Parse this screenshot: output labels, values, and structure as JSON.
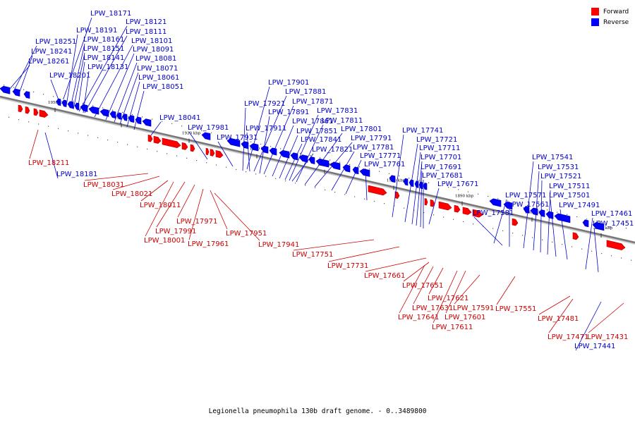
{
  "caption": "Legionella pneumophila 130b draft genome. - 0..3489800",
  "legend": {
    "forward": {
      "label": "Forward",
      "color": "#ff0000"
    },
    "reverse": {
      "label": "Reverse",
      "color": "#0000ff"
    }
  },
  "colors": {
    "forward_label": "#cc0000",
    "reverse_label": "#0000cc",
    "axis": "#777777"
  },
  "ticks": [
    "1950 kbp",
    "1940 kbp",
    "1930 kbp",
    "1920 kbp",
    "1910 kbp",
    "1900 kbp",
    "1890 kbp",
    "1880 kbp",
    "1870 kbp"
  ],
  "reverse_genes": [
    "LPW_18171",
    "LPW_18191",
    "LPW_18121",
    "LPW_18161",
    "LPW_18111",
    "LPW_18251",
    "LPW_18151",
    "LPW_18101",
    "LPW_18241",
    "LPW_18141",
    "LPW_18091",
    "LPW_18261",
    "LPW_18131",
    "LPW_18081",
    "LPW_18071",
    "LPW_18201",
    "LPW_18061",
    "LPW_18051",
    "LPW_18041",
    "LPW_17981",
    "LPW_17931",
    "LPW_17901",
    "LPW_17881",
    "LPW_17921",
    "LPW_17871",
    "LPW_17891",
    "LPW_17831",
    "LPW_17861",
    "LPW_17911",
    "LPW_17811",
    "LPW_17851",
    "LPW_17801",
    "LPW_17841",
    "LPW_17791",
    "LPW_17821",
    "LPW_17781",
    "LPW_17771",
    "LPW_17761",
    "LPW_17741",
    "LPW_17721",
    "LPW_17711",
    "LPW_17701",
    "LPW_17691",
    "LPW_17681",
    "LPW_17671",
    "LPW_17541",
    "LPW_17531",
    "LPW_17521",
    "LPW_17571",
    "LPW_17511",
    "LPW_17561",
    "LPW_17501",
    "LPW_17491",
    "LPW_17581",
    "LPW_17461",
    "LPW_17451",
    "LPW_18181",
    "LPW_17441"
  ],
  "forward_genes": [
    "LPW_18211",
    "LPW_18031",
    "LPW_18021",
    "LPW_18011",
    "LPW_17971",
    "LPW_17991",
    "LPW_17951",
    "LPW_18001",
    "LPW_17961",
    "LPW_17941",
    "LPW_17751",
    "LPW_17731",
    "LPW_17661",
    "LPW_17651",
    "LPW_17621",
    "LPW_17631",
    "LPW_17591",
    "LPW_17641",
    "LPW_17601",
    "LPW_17551",
    "LPW_17611",
    "LPW_17481",
    "LPW_17471",
    "LPW_17431"
  ]
}
